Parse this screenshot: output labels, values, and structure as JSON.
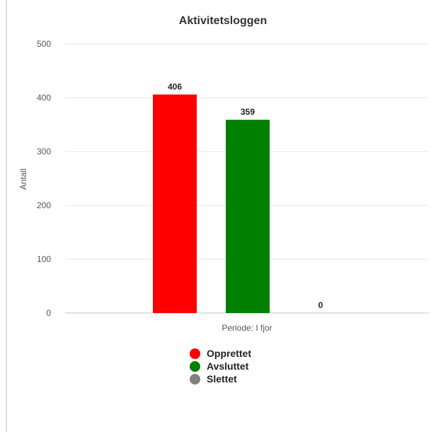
{
  "chart_data": {
    "type": "bar",
    "title": "Aktivitetsloggen",
    "ylabel": "Antall",
    "xlabel": "Periode: I fjor",
    "ylim": [
      0,
      500
    ],
    "yticks": [
      0,
      100,
      200,
      300,
      400,
      500
    ],
    "grid": true,
    "legend_placement": "bottom",
    "series": [
      {
        "name": "Opprettet",
        "value": 406,
        "color": "#ff0000"
      },
      {
        "name": "Avsluttet",
        "value": 359,
        "color": "#008000"
      },
      {
        "name": "Slettet",
        "value": 0,
        "color": "#808080"
      }
    ]
  }
}
